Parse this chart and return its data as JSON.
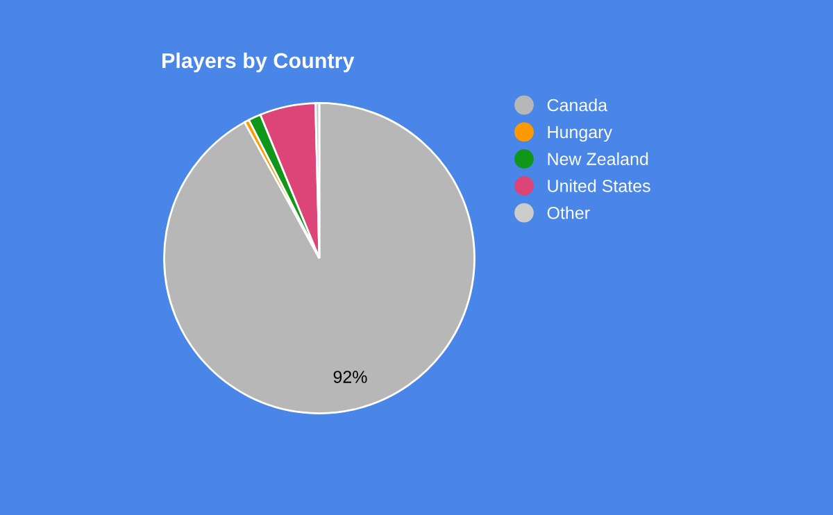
{
  "chart_data": {
    "type": "pie",
    "title": "Players by Country",
    "categories": [
      "Canada",
      "Hungary",
      "New Zealand",
      "United States",
      "Other"
    ],
    "values": [
      92,
      0.5,
      1.3,
      5.8,
      0.4
    ],
    "colors": [
      "#b7b7b7",
      "#ff9900",
      "#109618",
      "#dd4477",
      "#cccccc"
    ],
    "value_labels": [
      "92%",
      null,
      null,
      null,
      null
    ],
    "legend": "right"
  }
}
